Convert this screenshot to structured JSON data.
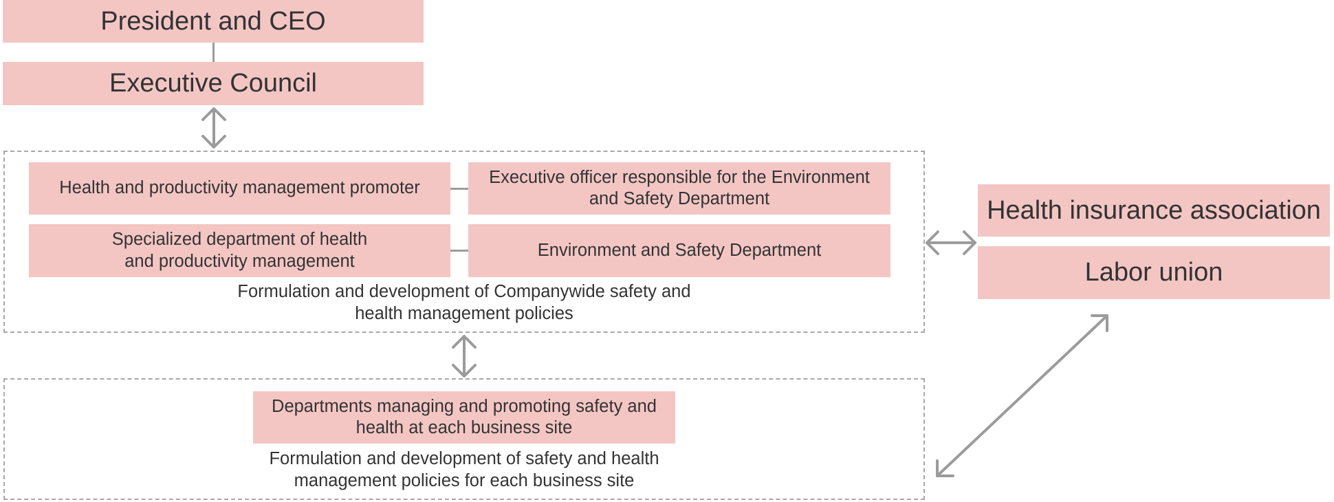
{
  "top": {
    "president": "President and CEO",
    "executive_council": "Executive Council"
  },
  "companywide": {
    "promoter": "Health and productivity management promoter",
    "executive_officer": "Executive officer responsible for the Environment and Safety Department",
    "specialized_dept": "Specialized department of health and productivity management",
    "env_safety_dept": "Environment and Safety Department",
    "caption": "Formulation and development of Companywide safety and health management policies"
  },
  "business_site": {
    "departments": "Departments managing and promoting safety and health at each business site",
    "caption": "Formulation and development of safety and health management policies for each business site"
  },
  "external": {
    "health_insurance": "Health insurance association",
    "labor_union": "Labor union"
  },
  "colors": {
    "box_fill": "#f3c6c4",
    "connector": "#9b9b9b",
    "dashed_frame": "#a7a7a7"
  }
}
